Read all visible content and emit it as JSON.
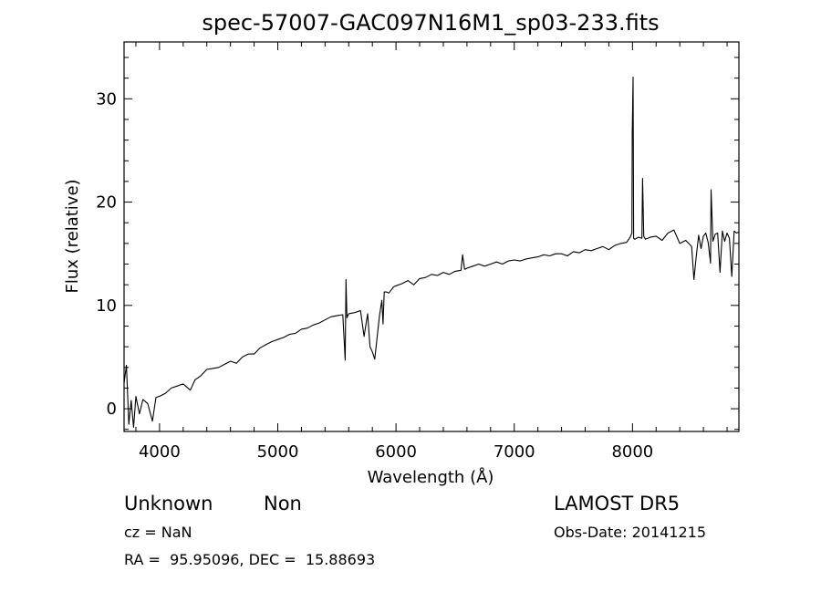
{
  "chart_data": {
    "type": "line",
    "title": "spec-57007-GAC097N16M1_sp03-233.fits",
    "xlabel": "Wavelength (Å)",
    "ylabel": "Flux (relative)",
    "xlim": [
      3700,
      8900
    ],
    "ylim": [
      -2.2,
      35.5
    ],
    "xticks": [
      4000,
      5000,
      6000,
      7000,
      8000
    ],
    "yticks": [
      0,
      10,
      20,
      30
    ],
    "grid": false,
    "series": [
      {
        "x": [
          3700,
          3720,
          3740,
          3760,
          3780,
          3800,
          3830,
          3860,
          3900,
          3940,
          3970,
          4000,
          4050,
          4100,
          4150,
          4200,
          4260,
          4300,
          4350,
          4400,
          4450,
          4500,
          4550,
          4600,
          4650,
          4700,
          4750,
          4800,
          4850,
          4900,
          4950,
          5000,
          5050,
          5100,
          5150,
          5200,
          5250,
          5300,
          5350,
          5400,
          5450,
          5500,
          5550,
          5570,
          5577,
          5585,
          5600,
          5650,
          5700,
          5730,
          5760,
          5780,
          5800,
          5820,
          5840,
          5860,
          5880,
          5890,
          5900,
          5920,
          5940,
          5960,
          5980,
          6000,
          6050,
          6100,
          6150,
          6200,
          6250,
          6300,
          6350,
          6400,
          6450,
          6500,
          6550,
          6563,
          6580,
          6600,
          6650,
          6700,
          6750,
          6800,
          6850,
          6900,
          6950,
          7000,
          7050,
          7100,
          7150,
          7200,
          7250,
          7300,
          7350,
          7400,
          7450,
          7500,
          7550,
          7600,
          7650,
          7700,
          7750,
          7800,
          7850,
          7900,
          7950,
          7980,
          7995,
          7998,
          8005,
          8010,
          8020,
          8050,
          8080,
          8085,
          8095,
          8110,
          8150,
          8200,
          8250,
          8300,
          8350,
          8400,
          8450,
          8500,
          8520,
          8540,
          8560,
          8580,
          8600,
          8620,
          8640,
          8660,
          8665,
          8680,
          8700,
          8720,
          8740,
          8760,
          8780,
          8800,
          8820,
          8840,
          8860,
          8880,
          8900
        ],
        "y": [
          2.5,
          4.2,
          -1.5,
          0.8,
          -1.8,
          1.2,
          -0.5,
          0.9,
          0.5,
          -1.2,
          1.1,
          1.2,
          1.5,
          2.0,
          2.2,
          2.4,
          1.8,
          2.8,
          3.2,
          3.8,
          3.9,
          4.0,
          4.3,
          4.6,
          4.4,
          5.0,
          5.3,
          5.3,
          5.9,
          6.2,
          6.5,
          6.7,
          6.9,
          7.2,
          7.3,
          7.7,
          7.8,
          8.1,
          8.3,
          8.6,
          8.9,
          9.0,
          9.1,
          4.7,
          12.5,
          8.8,
          9.2,
          9.3,
          9.5,
          7.0,
          9.2,
          6.0,
          5.5,
          4.8,
          6.9,
          9.0,
          10.5,
          8.2,
          11.3,
          11.3,
          11.2,
          11.5,
          11.8,
          11.9,
          12.1,
          12.4,
          12.0,
          12.6,
          12.7,
          13.0,
          12.9,
          13.2,
          13.0,
          13.3,
          13.4,
          14.9,
          13.5,
          13.6,
          13.8,
          14.0,
          13.8,
          14.0,
          14.2,
          14.0,
          14.3,
          14.4,
          14.3,
          14.5,
          14.6,
          14.7,
          14.9,
          14.8,
          15.0,
          15.0,
          14.8,
          15.2,
          15.1,
          15.4,
          15.3,
          15.5,
          15.7,
          15.4,
          15.8,
          16.0,
          16.1,
          16.6,
          17.0,
          26.8,
          32.1,
          16.5,
          16.4,
          16.6,
          16.5,
          22.3,
          16.7,
          16.4,
          16.6,
          16.7,
          16.3,
          17.0,
          17.3,
          16.0,
          16.3,
          15.7,
          12.5,
          14.8,
          16.8,
          15.5,
          16.7,
          17.0,
          16.1,
          14.1,
          21.2,
          16.2,
          16.9,
          17.0,
          13.2,
          17.2,
          16.2,
          17.0,
          16.5,
          12.8,
          17.2,
          17.0,
          17.1
        ]
      }
    ]
  },
  "info": {
    "object": "Unknown",
    "object_class": "Non",
    "cz": "cz = NaN",
    "coords": "RA =  95.95096, DEC =  15.88693",
    "survey": "LAMOST DR5",
    "obs_date": "Obs-Date: 20141215"
  }
}
